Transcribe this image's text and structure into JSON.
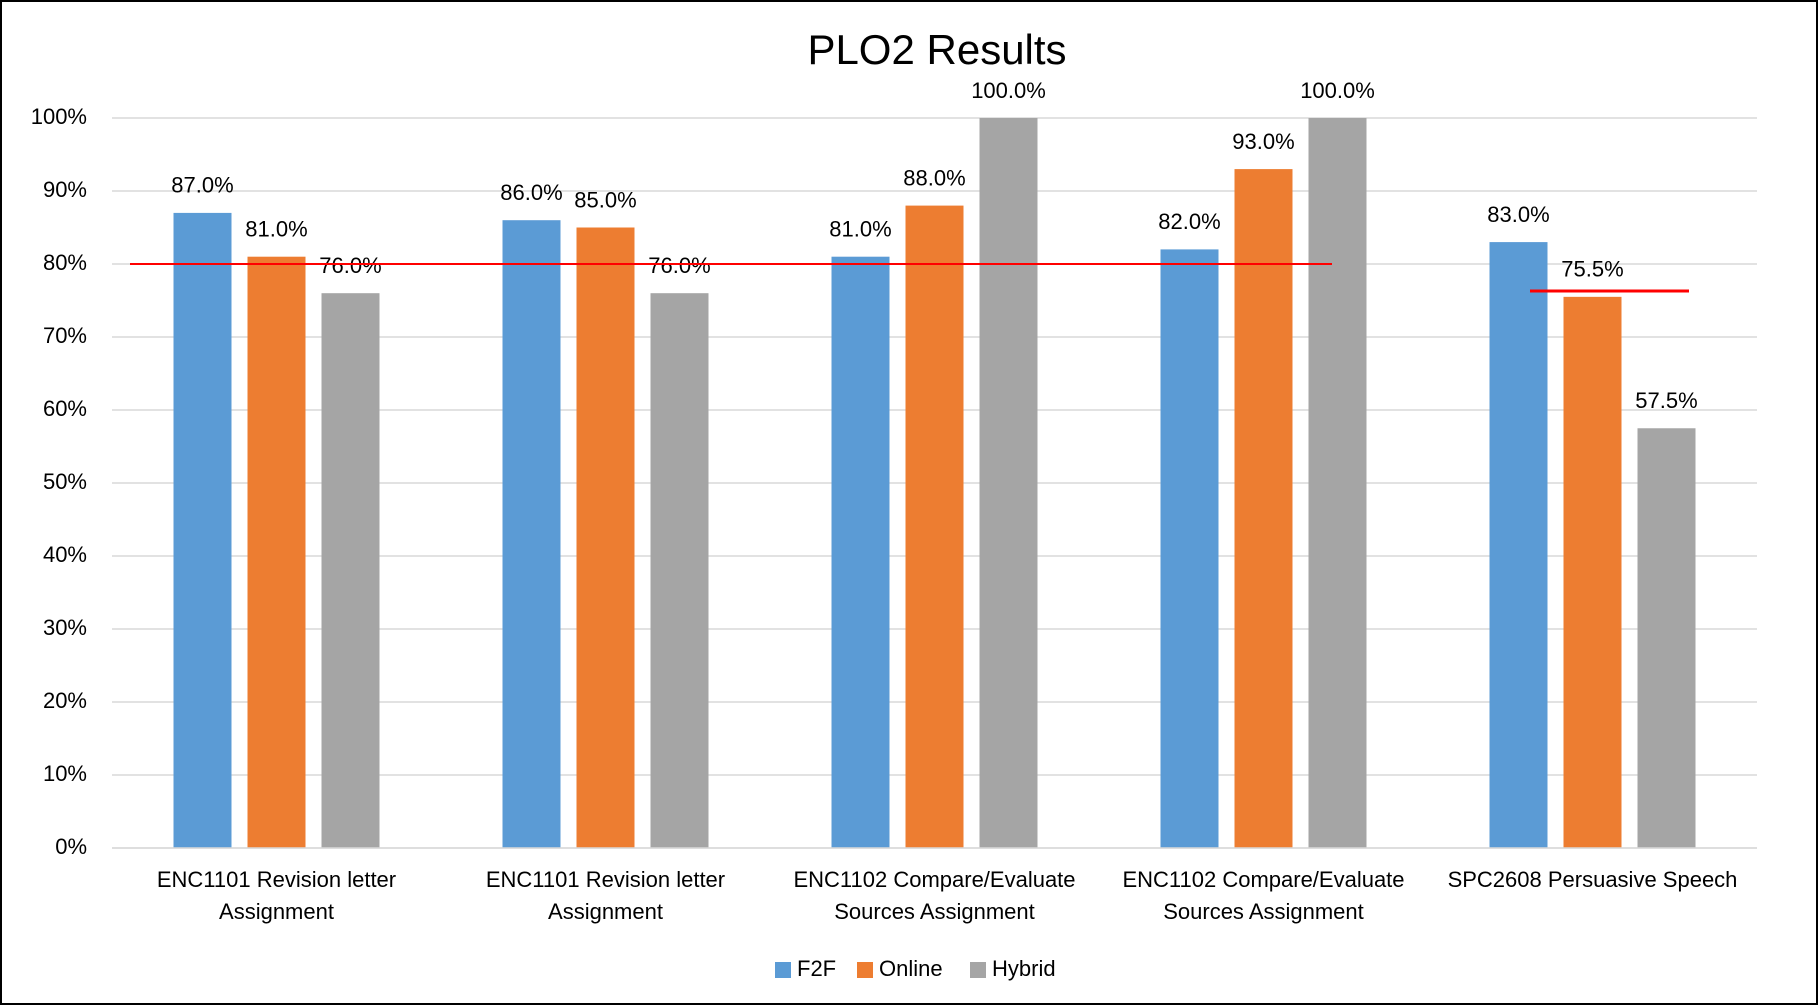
{
  "chart_data": {
    "type": "bar",
    "title": "PLO2 Results",
    "categories": [
      "ENC1101 Revision letter Assignment",
      "ENC1101 Revision letter Assignment",
      "ENC1102 Compare/Evaluate Sources Assignment",
      "ENC1102 Compare/Evaluate Sources Assignment",
      "SPC2608 Persuasive Speech"
    ],
    "series": [
      {
        "name": "F2F",
        "color": "#5b9bd5",
        "values": [
          87,
          86,
          81,
          82,
          83
        ],
        "value_labels": [
          "87.0%",
          "86.0%",
          "81.0%",
          "82.0%",
          "83.0%"
        ]
      },
      {
        "name": "Online",
        "color": "#ed7d31",
        "values": [
          81,
          85,
          88,
          93,
          75.5
        ],
        "value_labels": [
          "81.0%",
          "85.0%",
          "88.0%",
          "93.0%",
          "75.5%"
        ]
      },
      {
        "name": "Hybrid",
        "color": "#a5a5a5",
        "values": [
          76,
          76,
          100,
          100,
          57.5
        ],
        "value_labels": [
          "76.0%",
          "76.0%",
          "100.0%",
          "100.0%",
          "57.5%"
        ]
      }
    ],
    "ylim": [
      0,
      100
    ],
    "yticks": [
      {
        "value": 0,
        "label": "0%"
      },
      {
        "value": 10,
        "label": "10%"
      },
      {
        "value": 20,
        "label": "20%"
      },
      {
        "value": 30,
        "label": "30%"
      },
      {
        "value": 40,
        "label": "40%"
      },
      {
        "value": 50,
        "label": "50%"
      },
      {
        "value": 60,
        "label": "60%"
      },
      {
        "value": 70,
        "label": "70%"
      },
      {
        "value": 80,
        "label": "80%"
      },
      {
        "value": 90,
        "label": "90%"
      },
      {
        "value": 100,
        "label": "100%"
      }
    ],
    "grid": true,
    "legend": "bottom",
    "reference_lines": [
      {
        "value": 80,
        "color": "#ff0000"
      },
      {
        "value": 76.3,
        "color": "#ff0000"
      }
    ]
  }
}
